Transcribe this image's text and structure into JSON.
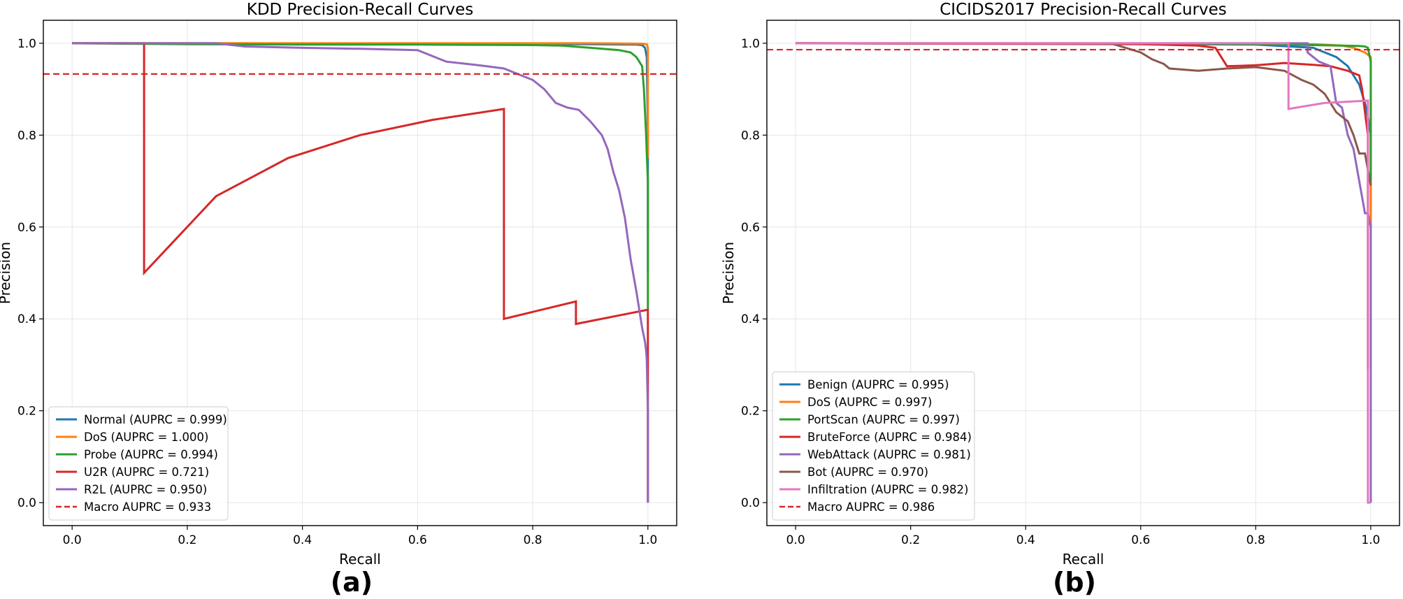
{
  "colors": {
    "blue": "#1f77b4",
    "orange": "#ff7f0e",
    "green": "#2ca02c",
    "red": "#d62728",
    "purple": "#9467bd",
    "brown": "#8c564b",
    "pink": "#e377c2",
    "macro": "#d62728"
  },
  "panel_labels": [
    "(a)",
    "(b)"
  ],
  "chart_data": [
    {
      "type": "line",
      "title": "KDD Precision-Recall Curves",
      "xlabel": "Recall",
      "ylabel": "Precision",
      "xlim": [
        -0.05,
        1.05
      ],
      "ylim": [
        -0.05,
        1.05
      ],
      "xticks": [
        0.0,
        0.2,
        0.4,
        0.6,
        0.8,
        1.0
      ],
      "yticks": [
        0.0,
        0.2,
        0.4,
        0.6,
        0.8,
        1.0
      ],
      "tick_labels": [
        "0.0",
        "0.2",
        "0.4",
        "0.6",
        "0.8",
        "1.0"
      ],
      "grid": true,
      "legend_position": "lower-left",
      "series": [
        {
          "name": "Normal (AUPRC = 0.999)",
          "color": "blue",
          "x": [
            0,
            0.3,
            0.6,
            0.9,
            0.98,
            0.99,
            0.995,
            0.998,
            1.0,
            1.0
          ],
          "y": [
            1.0,
            1.0,
            0.999,
            0.998,
            0.997,
            0.996,
            0.99,
            0.97,
            0.8,
            0.5
          ]
        },
        {
          "name": "DoS (AUPRC = 1.000)",
          "color": "orange",
          "x": [
            0,
            0.3,
            0.6,
            0.9,
            0.99,
            0.998,
            1.0,
            1.0,
            1.0
          ],
          "y": [
            1.0,
            1.0,
            1.0,
            1.0,
            0.999,
            0.998,
            0.99,
            0.85,
            0.75
          ]
        },
        {
          "name": "Probe (AUPRC = 0.994)",
          "color": "green",
          "x": [
            0,
            0.2,
            0.4,
            0.6,
            0.8,
            0.85,
            0.9,
            0.95,
            0.97,
            0.98,
            0.985,
            0.99,
            0.993,
            0.995,
            0.997,
            0.998,
            1.0,
            1.0,
            1.0
          ],
          "y": [
            1.0,
            0.998,
            0.997,
            0.997,
            0.996,
            0.995,
            0.99,
            0.985,
            0.98,
            0.97,
            0.96,
            0.95,
            0.9,
            0.85,
            0.8,
            0.76,
            0.7,
            0.5,
            0.42
          ]
        },
        {
          "name": "U2R (AUPRC = 0.721)",
          "color": "red",
          "x": [
            0,
            0.125,
            0.125,
            0.25,
            0.375,
            0.5,
            0.625,
            0.75,
            0.75,
            0.875,
            0.875,
            1.0,
            1.0,
            1.0
          ],
          "y": [
            1.0,
            1.0,
            0.5,
            0.667,
            0.75,
            0.8,
            0.833,
            0.857,
            0.4,
            0.438,
            0.389,
            0.42,
            0.31,
            0.0
          ]
        },
        {
          "name": "R2L (AUPRC = 0.950)",
          "color": "purple",
          "x": [
            0,
            0.25,
            0.3,
            0.4,
            0.5,
            0.6,
            0.65,
            0.7,
            0.72,
            0.75,
            0.78,
            0.8,
            0.82,
            0.84,
            0.86,
            0.88,
            0.9,
            0.92,
            0.93,
            0.94,
            0.95,
            0.96,
            0.97,
            0.98,
            0.985,
            0.99,
            0.995,
            0.997,
            0.998,
            1.0,
            1.0
          ],
          "y": [
            1.0,
            1.0,
            0.993,
            0.99,
            0.988,
            0.985,
            0.96,
            0.953,
            0.95,
            0.945,
            0.93,
            0.92,
            0.9,
            0.87,
            0.86,
            0.855,
            0.83,
            0.8,
            0.77,
            0.72,
            0.68,
            0.62,
            0.53,
            0.46,
            0.42,
            0.38,
            0.35,
            0.33,
            0.31,
            0.2,
            0.0
          ]
        }
      ],
      "reference_line": {
        "name": "Macro AUPRC = 0.933",
        "y": 0.933,
        "color": "macro",
        "style": "dashed"
      }
    },
    {
      "type": "line",
      "title": "CICIDS2017 Precision-Recall Curves",
      "xlabel": "Recall",
      "ylabel": "Precision",
      "xlim": [
        -0.05,
        1.05
      ],
      "ylim": [
        -0.05,
        1.05
      ],
      "xticks": [
        0.0,
        0.2,
        0.4,
        0.6,
        0.8,
        1.0
      ],
      "yticks": [
        0.0,
        0.2,
        0.4,
        0.6,
        0.8,
        1.0
      ],
      "tick_labels": [
        "0.0",
        "0.2",
        "0.4",
        "0.6",
        "0.8",
        "1.0"
      ],
      "grid": true,
      "legend_position": "lower-left",
      "series": [
        {
          "name": "Benign (AUPRC = 0.995)",
          "color": "blue",
          "x": [
            0,
            0.5,
            0.8,
            0.9,
            0.94,
            0.96,
            0.97,
            0.98,
            0.985,
            0.99,
            0.995,
            1.0,
            1.0
          ],
          "y": [
            1.0,
            0.999,
            0.997,
            0.99,
            0.97,
            0.95,
            0.93,
            0.91,
            0.89,
            0.87,
            0.84,
            0.8,
            0.6
          ]
        },
        {
          "name": "DoS (AUPRC = 0.997)",
          "color": "orange",
          "x": [
            0,
            0.5,
            0.8,
            0.9,
            0.95,
            0.97,
            0.98,
            0.99,
            0.995,
            1.0,
            1.0
          ],
          "y": [
            1.0,
            1.0,
            0.999,
            0.998,
            0.995,
            0.99,
            0.985,
            0.98,
            0.975,
            0.97,
            0.6
          ]
        },
        {
          "name": "PortScan (AUPRC = 0.997)",
          "color": "green",
          "x": [
            0,
            0.5,
            0.8,
            0.9,
            0.95,
            0.98,
            0.99,
            0.995,
            1.0,
            1.0,
            1.0
          ],
          "y": [
            1.0,
            0.999,
            0.998,
            0.996,
            0.995,
            0.994,
            0.993,
            0.99,
            0.96,
            0.87,
            0.7
          ]
        },
        {
          "name": "BruteForce (AUPRC = 0.984)",
          "color": "red",
          "x": [
            0,
            0.6,
            0.7,
            0.73,
            0.75,
            0.8,
            0.85,
            0.9,
            0.93,
            0.96,
            0.98,
            0.985,
            0.99,
            0.995,
            0.995
          ],
          "y": [
            1.0,
            0.998,
            0.995,
            0.99,
            0.95,
            0.952,
            0.957,
            0.953,
            0.95,
            0.94,
            0.93,
            0.9,
            0.85,
            0.8,
            0.29
          ]
        },
        {
          "name": "WebAttack (AUPRC = 0.981)",
          "color": "purple",
          "x": [
            0,
            0.5,
            0.85,
            0.89,
            0.89,
            0.9,
            0.91,
            0.93,
            0.94,
            0.95,
            0.96,
            0.97,
            0.98,
            0.99,
            0.995,
            1.0,
            1.0
          ],
          "y": [
            1.0,
            1.0,
            1.0,
            1.0,
            0.98,
            0.97,
            0.96,
            0.95,
            0.87,
            0.86,
            0.8,
            0.77,
            0.7,
            0.63,
            0.63,
            0.6,
            0.0
          ]
        },
        {
          "name": "Bot (AUPRC = 0.970)",
          "color": "brown",
          "x": [
            0,
            0.55,
            0.6,
            0.62,
            0.64,
            0.65,
            0.7,
            0.75,
            0.8,
            0.85,
            0.88,
            0.9,
            0.92,
            0.94,
            0.96,
            0.97,
            0.98,
            0.99,
            1.0
          ],
          "y": [
            1.0,
            0.999,
            0.98,
            0.965,
            0.955,
            0.945,
            0.94,
            0.945,
            0.948,
            0.94,
            0.92,
            0.91,
            0.89,
            0.85,
            0.83,
            0.8,
            0.76,
            0.76,
            0.69
          ]
        },
        {
          "name": "Infiltration (AUPRC = 0.982)",
          "color": "pink",
          "x": [
            0,
            0.85,
            0.857,
            0.857,
            0.92,
            0.995,
            0.995,
            1.0
          ],
          "y": [
            1.0,
            1.0,
            1.0,
            0.857,
            0.87,
            0.875,
            0.0,
            0.0
          ]
        }
      ],
      "reference_line": {
        "name": "Macro AUPRC = 0.986",
        "y": 0.986,
        "color": "macro",
        "style": "dashed"
      }
    }
  ]
}
